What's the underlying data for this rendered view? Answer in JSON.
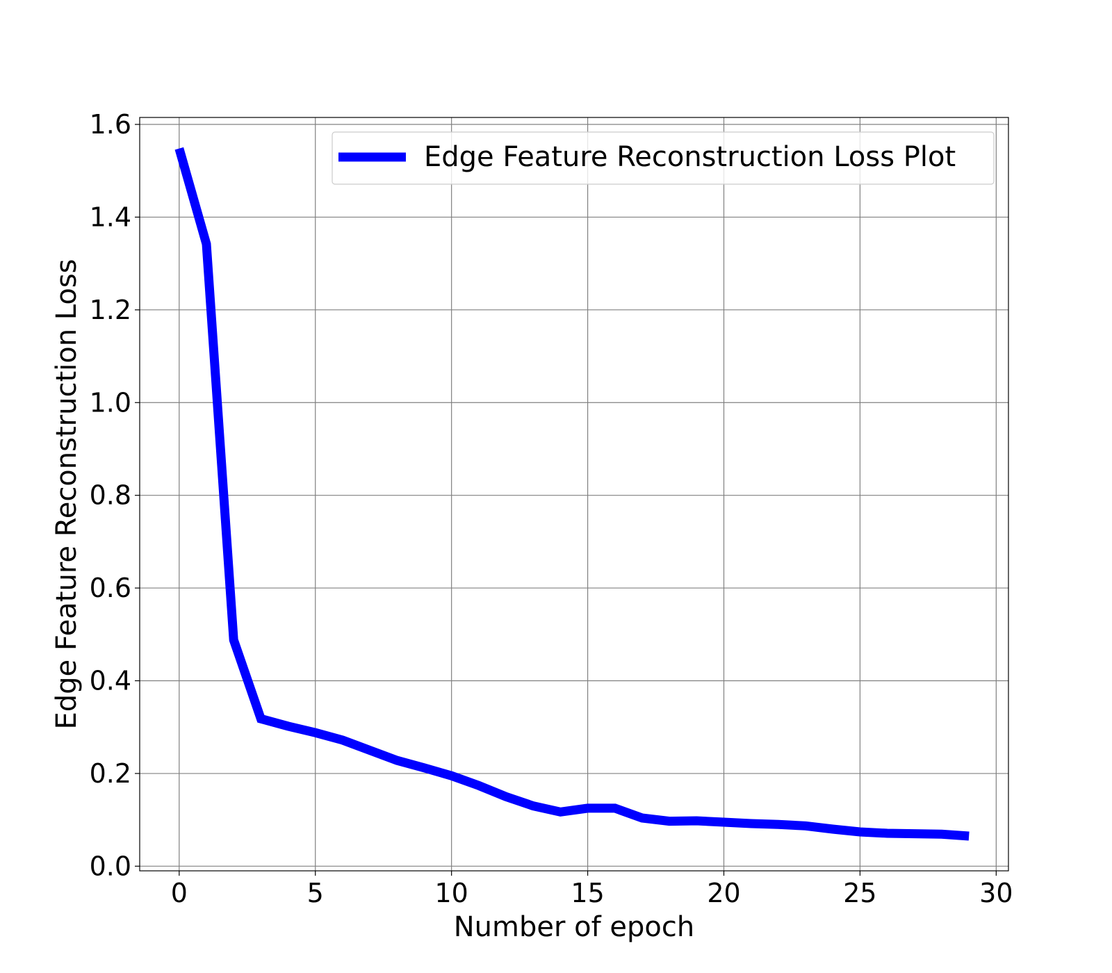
{
  "chart_data": {
    "type": "line",
    "xlabel": "Number of epoch",
    "ylabel": "Edge Feature Reconstruction Loss",
    "xlim": [
      -1.45,
      30.45
    ],
    "ylim": [
      -0.01,
      1.615
    ],
    "xticks": [
      0,
      5,
      10,
      15,
      20,
      25,
      30
    ],
    "yticks": [
      0.0,
      0.2,
      0.4,
      0.6,
      0.8,
      1.0,
      1.2,
      1.4,
      1.6
    ],
    "xtick_labels": [
      "0",
      "5",
      "10",
      "15",
      "20",
      "25",
      "30"
    ],
    "ytick_labels": [
      "0.0",
      "0.2",
      "0.4",
      "0.6",
      "0.8",
      "1.0",
      "1.2",
      "1.4",
      "1.6"
    ],
    "grid": true,
    "legend_position": "top-right",
    "series": [
      {
        "name": "Edge Feature Reconstruction Loss Plot",
        "color": "#0000ff",
        "x": [
          0,
          1,
          2,
          3,
          4,
          5,
          6,
          7,
          8,
          9,
          10,
          11,
          12,
          13,
          14,
          15,
          16,
          17,
          18,
          19,
          20,
          21,
          22,
          23,
          24,
          25,
          26,
          27,
          28,
          29
        ],
        "y": [
          1.548,
          1.342,
          0.488,
          0.318,
          0.302,
          0.288,
          0.272,
          0.25,
          0.228,
          0.212,
          0.195,
          0.174,
          0.15,
          0.13,
          0.117,
          0.125,
          0.125,
          0.104,
          0.097,
          0.098,
          0.095,
          0.092,
          0.09,
          0.087,
          0.08,
          0.074,
          0.071,
          0.07,
          0.069,
          0.065
        ]
      }
    ]
  }
}
